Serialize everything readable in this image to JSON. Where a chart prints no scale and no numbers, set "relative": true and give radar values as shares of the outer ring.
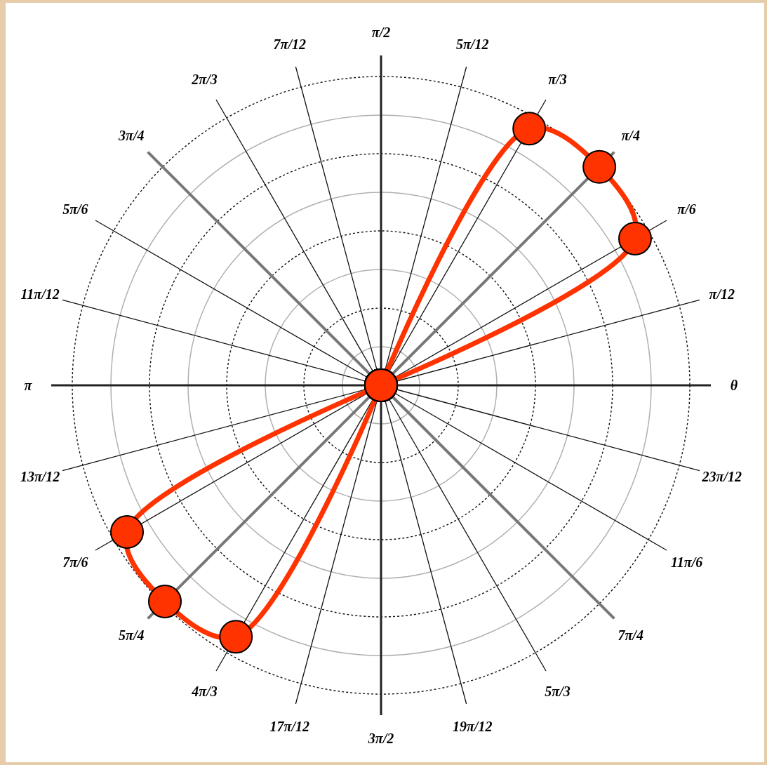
{
  "chart_data": {
    "type": "radar",
    "relative": true,
    "grid": true,
    "legend": false,
    "marker": "circle",
    "categories": [
      "π/2",
      "5π/12",
      "π/3",
      "π/4",
      "π/6",
      "π/12",
      "θ",
      "23π/12",
      "11π/6",
      "7π/4",
      "5π/3",
      "19π/12",
      "3π/2",
      "17π/12",
      "4π/3",
      "5π/4",
      "7π/6",
      "13π/12",
      "π",
      "11π/12",
      "5π/6",
      "3π/4",
      "2π/3",
      "7π/12"
    ],
    "series": [
      {
        "color": "#ff3300",
        "values": [
          0,
          0,
          0.96,
          1.0,
          0.95,
          0,
          0,
          0,
          0,
          0,
          0,
          0,
          0,
          0,
          0.94,
          0.99,
          0.95,
          0,
          0,
          0,
          0,
          0,
          0,
          0
        ]
      }
    ]
  }
}
